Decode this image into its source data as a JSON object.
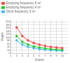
{
  "chart_data": {
    "type": "line",
    "xlabel": "Users",
    "ylabel": "Years",
    "x": [
      2,
      3,
      4,
      5,
      6,
      7,
      8,
      9,
      10
    ],
    "series": [
      {
        "name": "Emptying frequency 6 m³",
        "color": "#ff4444",
        "marker": "square",
        "values": [
          165,
          110,
          82,
          66,
          55,
          47,
          41,
          37,
          33
        ]
      },
      {
        "name": "Emptying frequency 4 m³",
        "color": "#22cc22",
        "marker": "square",
        "values": [
          110,
          73,
          55,
          44,
          37,
          31,
          27,
          24,
          22
        ]
      },
      {
        "name": "Short frequency 3 m³",
        "color": "#44bbff",
        "marker": "square",
        "values": [
          82,
          55,
          41,
          33,
          27,
          23,
          20,
          18,
          16
        ]
      }
    ],
    "xlim": [
      1,
      11
    ],
    "xticks": [
      1,
      2,
      3,
      4,
      5,
      6,
      7,
      8,
      9,
      10
    ],
    "ylim": [
      0,
      210
    ],
    "yticks": [
      0,
      20,
      40,
      60,
      80,
      100,
      120,
      140,
      160,
      180,
      200
    ],
    "grid": true,
    "legend": "upper left"
  }
}
